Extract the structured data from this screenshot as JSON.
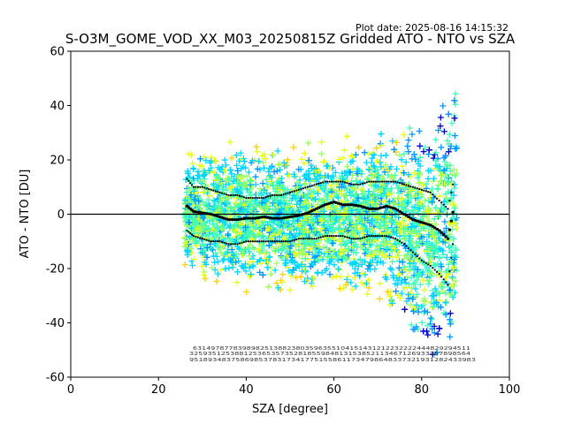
{
  "chart_data": {
    "type": "scatter",
    "plot_date": "Plot date: 2025-08-16 14:15:32",
    "title": "S-O3M_GOME_VOD_XX_M03_20250815Z Gridded ATO - NTO vs SZA",
    "xlabel": "SZA [degree]",
    "ylabel": "ATO - NTO [DU]",
    "xlim": [
      0,
      100
    ],
    "ylim": [
      -60,
      60
    ],
    "xticks": [
      0,
      20,
      40,
      60,
      80,
      100
    ],
    "yticks": [
      -60,
      -40,
      -20,
      0,
      20,
      40,
      60
    ],
    "zero_line": 0,
    "grid": false,
    "marker": "plus",
    "colormap": [
      "#0000cc",
      "#0096ff",
      "#00d7ff",
      "#40ffb8",
      "#9cff5a",
      "#e6ff14",
      "#ffd200"
    ],
    "point_density": {
      "sza_range": [
        26,
        88
      ],
      "envelope_sza": [
        26,
        30,
        35,
        40,
        45,
        50,
        55,
        60,
        65,
        70,
        75,
        78,
        80,
        82,
        84,
        86,
        88
      ],
      "envelope_low": [
        -22,
        -26,
        -28,
        -29,
        -28,
        -29,
        -30,
        -29,
        -30,
        -30,
        -38,
        -48,
        -55,
        -58,
        -60,
        -60,
        -48
      ],
      "envelope_high": [
        22,
        25,
        27,
        27,
        25,
        24,
        25,
        26,
        28,
        30,
        31,
        35,
        38,
        42,
        48,
        52,
        46
      ]
    },
    "series": [
      {
        "name": "mean",
        "x": [
          26.5,
          28,
          30,
          32,
          34,
          36,
          38,
          40,
          42,
          44,
          46,
          48,
          50,
          52,
          54,
          56,
          58,
          60,
          62,
          64,
          66,
          68,
          70,
          72,
          74,
          76,
          78,
          80,
          82,
          84,
          86,
          87.5
        ],
        "y": [
          3,
          1,
          0.5,
          0,
          -1,
          -2,
          -2,
          -1.5,
          -1.5,
          -1,
          -1.5,
          -1.5,
          -1,
          -0.5,
          0.5,
          2,
          3.5,
          4.5,
          3.5,
          3.5,
          3,
          2,
          2,
          3,
          2,
          0,
          -2,
          -3,
          -4,
          -6,
          -9,
          4
        ]
      },
      {
        "name": "upper",
        "x": [
          26.5,
          28,
          30,
          32,
          34,
          36,
          38,
          40,
          42,
          44,
          46,
          48,
          50,
          52,
          54,
          56,
          58,
          60,
          62,
          64,
          66,
          68,
          70,
          72,
          74,
          76,
          78,
          80,
          82,
          84,
          86,
          87.5
        ],
        "y": [
          13,
          10,
          10,
          9,
          8,
          7,
          7,
          6,
          6,
          6,
          7,
          7,
          8,
          9,
          10,
          11,
          12,
          12,
          12,
          11,
          11,
          12,
          12,
          12,
          12,
          11,
          10,
          9,
          8,
          5,
          2,
          14
        ]
      },
      {
        "name": "lower",
        "x": [
          26.5,
          28,
          30,
          32,
          34,
          36,
          38,
          40,
          42,
          44,
          46,
          48,
          50,
          52,
          54,
          56,
          58,
          60,
          62,
          64,
          66,
          68,
          70,
          72,
          74,
          76,
          78,
          80,
          82,
          84,
          86,
          87.5
        ],
        "y": [
          -6,
          -8,
          -9,
          -10,
          -10,
          -11,
          -11,
          -10,
          -10,
          -10,
          -10,
          -10,
          -10,
          -9,
          -9,
          -9,
          -8,
          -8,
          -8,
          -9,
          -9,
          -8,
          -8,
          -8,
          -9,
          -11,
          -14,
          -17,
          -19,
          -22,
          -26,
          -6
        ]
      }
    ],
    "count_rows": {
      "row1": "63149787783989825138823803596355104151431212232222444829294511",
      "row2": "32593512538812536535735281855984813153852113467126933357898564",
      "row3": "95189348375869853783173417751558611734798648337321931282433983"
    }
  }
}
